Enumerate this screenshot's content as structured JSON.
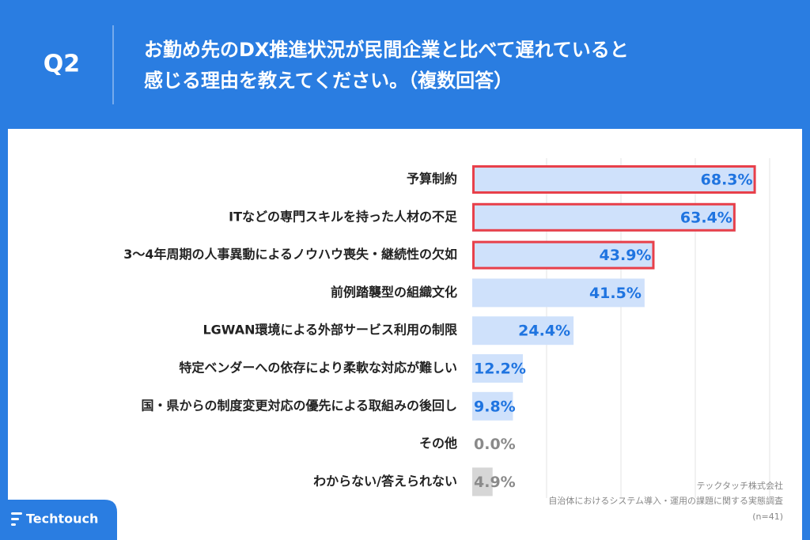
{
  "header": {
    "label": "Q2",
    "title": [
      "お勤め先のDX推進状況が民間企業と比べて遅れていると",
      "感じる理由を教えてください。（複数回答）"
    ]
  },
  "chart_data": {
    "type": "bar",
    "orientation": "horizontal",
    "categories": [
      "予算制約",
      "ITなどの専門スキルを持った人材の不足",
      "3〜4年周期の人事異動によるノウハウ喪失・継続性の欠如",
      "前例踏襲型の組織文化",
      "LGWAN環境による外部サービス利用の制限",
      "特定ベンダーへの依存により柔軟な対応が難しい",
      "国・県からの制度変更対応の優先による取組みの後回し",
      "その他",
      "わからない/答えられない"
    ],
    "values": [
      68.3,
      63.4,
      43.9,
      41.5,
      24.4,
      12.2,
      9.8,
      0.0,
      4.9
    ],
    "value_labels": [
      "68.3%",
      "63.4%",
      "43.9%",
      "41.5%",
      "24.4%",
      "12.2%",
      "9.8%",
      "0.0%",
      "4.9%"
    ],
    "colors": [
      "#cfe1fb",
      "#cfe1fb",
      "#cfe1fb",
      "#cfe1fb",
      "#cfe1fb",
      "#cfe1fb",
      "#cfe1fb",
      "#d6d6d6",
      "#d6d6d6"
    ],
    "label_colors": [
      "#1f74e0",
      "#1f74e0",
      "#1f74e0",
      "#1f74e0",
      "#1f74e0",
      "#1f74e0",
      "#1f74e0",
      "#8a8a8a",
      "#8a8a8a"
    ],
    "outlined": [
      true,
      true,
      true,
      false,
      false,
      false,
      false,
      false,
      false
    ],
    "outline_color": "#e8404a",
    "xlim": [
      0,
      72
    ]
  },
  "source": [
    "テックタッチ株式会社",
    "自治体におけるシステム導入・運用の課題に関する実態調査",
    "(n=41)"
  ],
  "logo": "Techtouch"
}
